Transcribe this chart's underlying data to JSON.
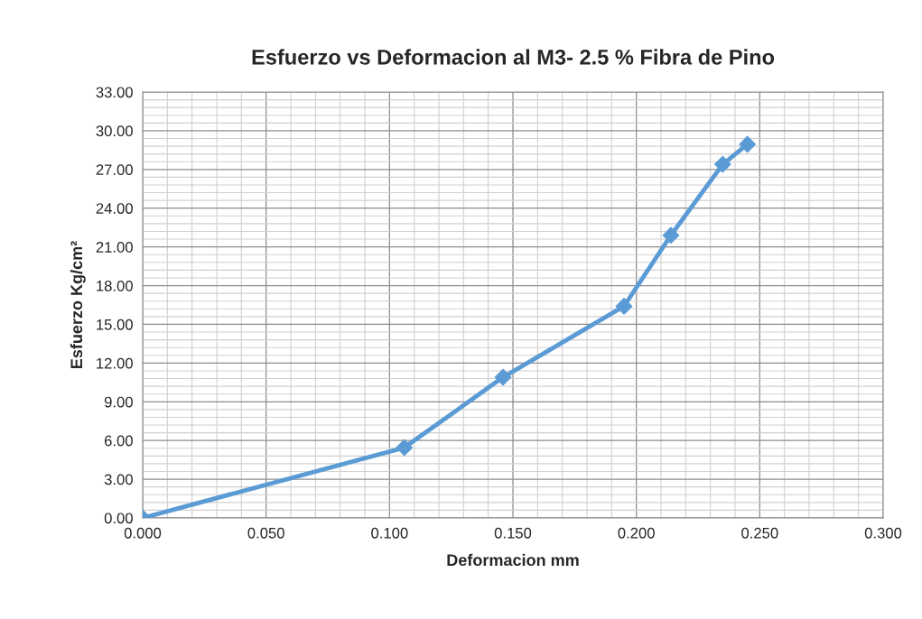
{
  "chart_data": {
    "type": "line",
    "title": "Esfuerzo vs Deformacion al M3- 2.5 % Fibra de Pino",
    "xlabel": "Deformacion mm",
    "ylabel": "Esfuerzo Kg/cm²",
    "x": [
      0.0,
      0.106,
      0.146,
      0.195,
      0.214,
      0.235,
      0.245
    ],
    "series": [
      {
        "color": "#5b9bd5",
        "values": [
          0.0,
          5.45,
          10.9,
          16.4,
          21.9,
          27.4,
          28.95
        ]
      }
    ],
    "xlim": [
      0,
      0.3
    ],
    "ylim": [
      0,
      33
    ],
    "xticks": [
      {
        "value": 0,
        "label": "0.000"
      },
      {
        "value": 0.05,
        "label": "0.050"
      },
      {
        "value": 0.1,
        "label": "0.100"
      },
      {
        "value": 0.15,
        "label": "0.150"
      },
      {
        "value": 0.2,
        "label": "0.200"
      },
      {
        "value": 0.25,
        "label": "0.250"
      },
      {
        "value": 0.3,
        "label": "0.300"
      }
    ],
    "yticks": [
      {
        "value": 0,
        "label": "0.00"
      },
      {
        "value": 3,
        "label": "3.00"
      },
      {
        "value": 6,
        "label": "6.00"
      },
      {
        "value": 9,
        "label": "9.00"
      },
      {
        "value": 12,
        "label": "12.00"
      },
      {
        "value": 15,
        "label": "15.00"
      },
      {
        "value": 18,
        "label": "18.00"
      },
      {
        "value": 21,
        "label": "21.00"
      },
      {
        "value": 24,
        "label": "24.00"
      },
      {
        "value": 27,
        "label": "27.00"
      },
      {
        "value": 30,
        "label": "30.00"
      },
      {
        "value": 33,
        "label": "33.00"
      }
    ],
    "grid": true,
    "marker": "diamond",
    "line_style": "solid"
  }
}
